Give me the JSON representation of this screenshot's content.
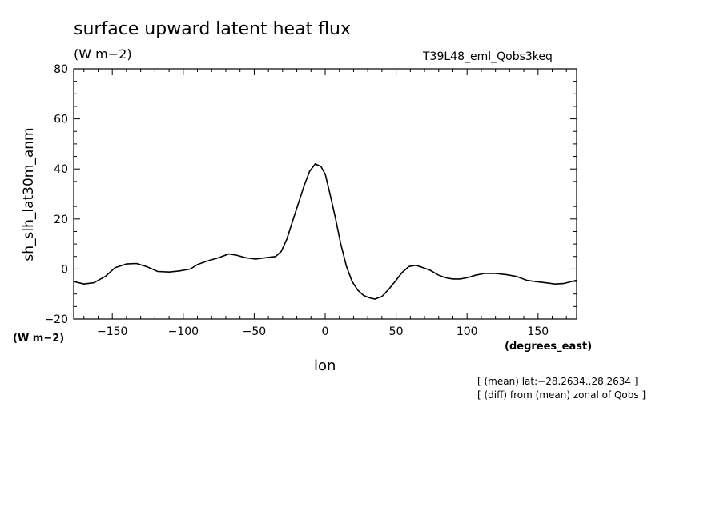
{
  "chart_data": {
    "type": "line",
    "title": "surface upward latent heat flux",
    "units_label": "(W m−2)",
    "run_label": "T39L48_eml_Qobs3keq",
    "ylabel": "sh_slh_lat30m_anm",
    "y_unit": "(W m−2)",
    "xlabel": "lon",
    "x_unit": "(degrees_east)",
    "xlim": [
      -177.2,
      177.2
    ],
    "ylim": [
      -20,
      80
    ],
    "xticks": [
      -150,
      -100,
      -50,
      0,
      50,
      100,
      150
    ],
    "xtick_labels": [
      "−150",
      "−100",
      "−50",
      "0",
      "50",
      "100",
      "150"
    ],
    "yticks": [
      -20,
      0,
      20,
      40,
      60,
      80
    ],
    "ytick_labels": [
      "−20",
      "0",
      "20",
      "40",
      "60",
      "80"
    ],
    "grid": false,
    "annotations": [
      "[ (mean) lat:−28.2634..28.2634 ]",
      "[ (diff) from (mean) zonal of Qobs ]"
    ],
    "series": [
      {
        "x": [
          -177.2,
          -170,
          -163,
          -155,
          -148,
          -140,
          -133,
          -126,
          -118,
          -110,
          -103,
          -95,
          -90,
          -83,
          -75,
          -68,
          -63,
          -56,
          -49,
          -42,
          -35,
          -31,
          -27,
          -23,
          -19,
          -15,
          -11,
          -7,
          -3,
          0,
          3,
          7,
          11,
          15,
          19,
          23,
          27,
          31,
          35,
          40,
          45,
          50,
          54,
          59,
          64,
          69,
          74,
          80,
          85,
          90,
          95,
          100,
          106,
          112,
          120,
          128,
          135,
          142,
          148,
          155,
          162,
          168,
          177.2
        ],
        "y": [
          -5,
          -6,
          -5.5,
          -3,
          0.5,
          2,
          2.2,
          1,
          -1,
          -1.2,
          -0.8,
          0,
          1.8,
          3.2,
          4.5,
          6,
          5.6,
          4.5,
          4,
          4.5,
          5,
          7,
          12,
          19,
          26,
          33,
          39,
          42,
          41,
          38,
          31,
          21,
          10,
          1,
          -5,
          -8.5,
          -10.5,
          -11.5,
          -12,
          -11,
          -8,
          -4.5,
          -1.5,
          1,
          1.5,
          0.5,
          -0.5,
          -2.5,
          -3.5,
          -4,
          -4,
          -3.5,
          -2.5,
          -1.8,
          -1.8,
          -2.3,
          -3,
          -4.5,
          -5,
          -5.5,
          -6,
          -5.8,
          -4.5
        ]
      }
    ]
  }
}
